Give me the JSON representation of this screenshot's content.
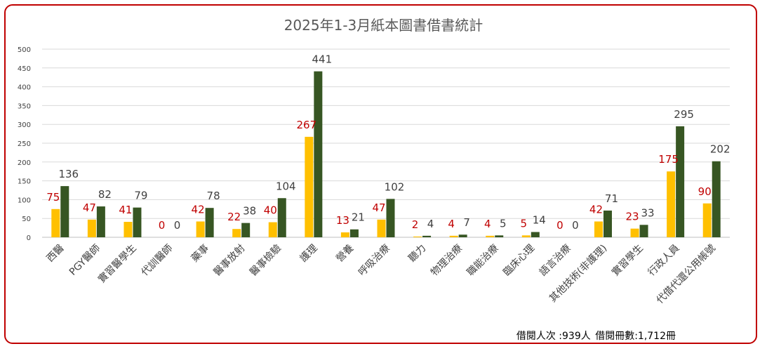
{
  "chart_data": {
    "type": "bar",
    "title": "2025年1-3月紙本圖書借書統計",
    "categories": [
      "西醫",
      "PGY醫師",
      "實習醫學生",
      "代訓醫師",
      "藥事",
      "醫事放射",
      "醫事檢驗",
      "護理",
      "營養",
      "呼吸治療",
      "聽力",
      "物理治療",
      "職能治療",
      "臨床心理",
      "語言治療",
      "其他技術(非護理)",
      "實習學生",
      "行政人員",
      "代借代還公用帳號"
    ],
    "series": [
      {
        "color": "#ffc000",
        "label_color": "#c00000",
        "values": [
          75,
          47,
          41,
          0,
          42,
          22,
          40,
          267,
          13,
          47,
          2,
          4,
          4,
          5,
          0,
          42,
          23,
          175,
          90
        ]
      },
      {
        "color": "#375623",
        "label_color": "#404040",
        "values": [
          136,
          82,
          79,
          0,
          78,
          38,
          104,
          441,
          21,
          102,
          4,
          7,
          5,
          14,
          0,
          71,
          33,
          295,
          202
        ]
      }
    ],
    "ylim": [
      0,
      500
    ],
    "yticks": [
      "0",
      "50",
      "100",
      "150",
      "200",
      "250",
      "300",
      "350",
      "400",
      "450",
      "500"
    ],
    "grid": true,
    "footer": {
      "visits": "借閱人次 :939人",
      "volumes": "借閱冊數:1,712冊"
    }
  }
}
